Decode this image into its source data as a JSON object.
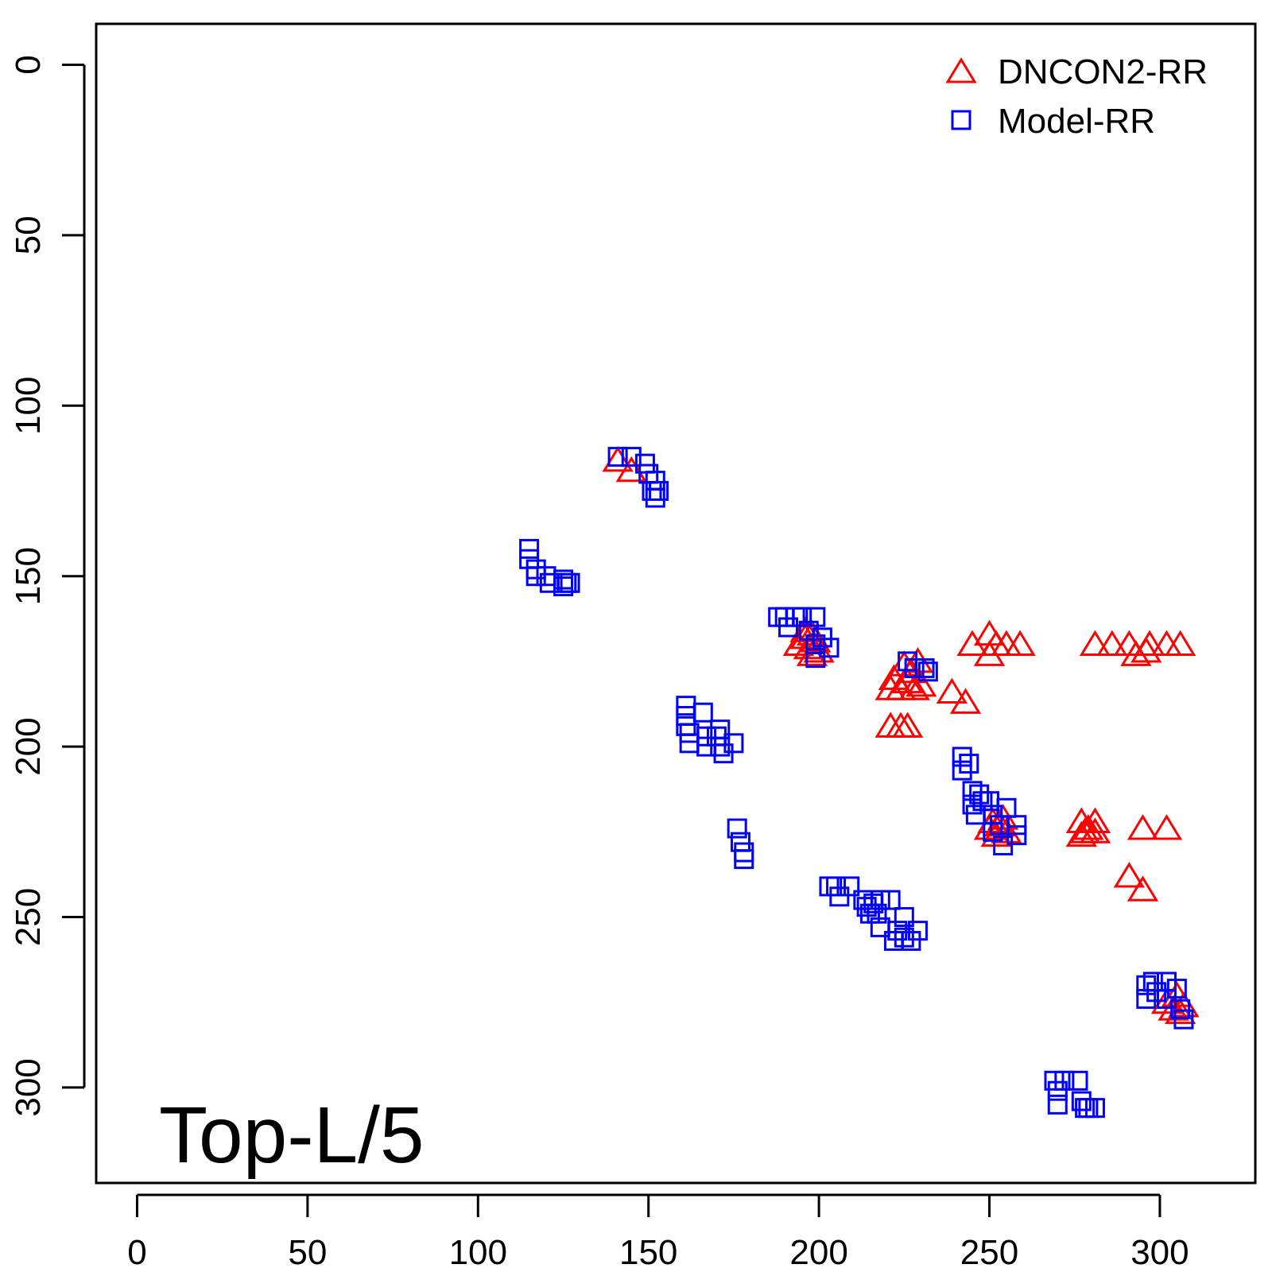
{
  "chart_data": {
    "type": "scatter",
    "annotation": "Top-L/5",
    "xlim": [
      -12,
      328
    ],
    "ylim": [
      328,
      -12
    ],
    "x_ticks": [
      0,
      50,
      100,
      150,
      200,
      250,
      300
    ],
    "y_ticks": [
      0,
      50,
      100,
      150,
      200,
      250,
      300
    ],
    "y_reversed": true,
    "legend_position": "top-right",
    "series": [
      {
        "name": "DNCON2-RR",
        "marker": "triangle",
        "color": "#ff0000",
        "points": [
          [
            141,
            116
          ],
          [
            145,
            119
          ],
          [
            194,
            170
          ],
          [
            196,
            168
          ],
          [
            197,
            171
          ],
          [
            198,
            167
          ],
          [
            199,
            169
          ],
          [
            200,
            172
          ],
          [
            198,
            173
          ],
          [
            196,
            166
          ],
          [
            221,
            183
          ],
          [
            222,
            180
          ],
          [
            224,
            183
          ],
          [
            225,
            176
          ],
          [
            226,
            181
          ],
          [
            228,
            183
          ],
          [
            230,
            182
          ],
          [
            227,
            178
          ],
          [
            229,
            175
          ],
          [
            221,
            194
          ],
          [
            224,
            194
          ],
          [
            226,
            194
          ],
          [
            239,
            184
          ],
          [
            243,
            187
          ],
          [
            245,
            170
          ],
          [
            250,
            167
          ],
          [
            252,
            170
          ],
          [
            250,
            173
          ],
          [
            255,
            170
          ],
          [
            259,
            170
          ],
          [
            281,
            170
          ],
          [
            286,
            170
          ],
          [
            291,
            170
          ],
          [
            293,
            173
          ],
          [
            296,
            172
          ],
          [
            297,
            170
          ],
          [
            302,
            170
          ],
          [
            306,
            170
          ],
          [
            250,
            224
          ],
          [
            251,
            222
          ],
          [
            252,
            226
          ],
          [
            253,
            223
          ],
          [
            254,
            221
          ],
          [
            255,
            225
          ],
          [
            277,
            226
          ],
          [
            277,
            222
          ],
          [
            278,
            225
          ],
          [
            279,
            224
          ],
          [
            281,
            222
          ],
          [
            281,
            225
          ],
          [
            295,
            224
          ],
          [
            302,
            224
          ],
          [
            291,
            238
          ],
          [
            295,
            242
          ],
          [
            302,
            275
          ],
          [
            304,
            277
          ],
          [
            305,
            273
          ],
          [
            306,
            278
          ],
          [
            307,
            276
          ]
        ]
      },
      {
        "name": "Model-RR",
        "marker": "square",
        "color": "#0000ff",
        "points": [
          [
            141,
            115
          ],
          [
            145,
            115
          ],
          [
            149,
            117
          ],
          [
            150,
            120
          ],
          [
            152,
            122
          ],
          [
            151,
            125
          ],
          [
            153,
            125
          ],
          [
            152,
            127
          ],
          [
            115,
            142
          ],
          [
            115,
            145
          ],
          [
            117,
            148
          ],
          [
            117,
            150
          ],
          [
            120,
            150
          ],
          [
            121,
            152
          ],
          [
            125,
            151
          ],
          [
            125,
            153
          ],
          [
            126,
            152
          ],
          [
            127,
            152
          ],
          [
            188,
            162
          ],
          [
            190,
            162
          ],
          [
            191,
            165
          ],
          [
            193,
            162
          ],
          [
            195,
            162
          ],
          [
            199,
            162
          ],
          [
            197,
            166
          ],
          [
            199,
            170
          ],
          [
            201,
            168
          ],
          [
            203,
            171
          ],
          [
            199,
            174
          ],
          [
            161,
            188
          ],
          [
            161,
            191
          ],
          [
            161,
            194
          ],
          [
            162,
            196
          ],
          [
            162,
            199
          ],
          [
            166,
            190
          ],
          [
            167,
            197
          ],
          [
            167,
            200
          ],
          [
            170,
            197
          ],
          [
            171,
            195
          ],
          [
            171,
            200
          ],
          [
            172,
            202
          ],
          [
            175,
            199
          ],
          [
            176,
            224
          ],
          [
            177,
            228
          ],
          [
            178,
            231
          ],
          [
            178,
            233
          ],
          [
            203,
            241
          ],
          [
            205,
            241
          ],
          [
            206,
            244
          ],
          [
            209,
            241
          ],
          [
            213,
            245
          ],
          [
            214,
            247
          ],
          [
            215,
            249
          ],
          [
            216,
            246
          ],
          [
            217,
            249
          ],
          [
            218,
            253
          ],
          [
            218,
            245
          ],
          [
            221,
            245
          ],
          [
            222,
            257
          ],
          [
            223,
            254
          ],
          [
            225,
            250
          ],
          [
            225,
            256
          ],
          [
            227,
            257
          ],
          [
            229,
            254
          ],
          [
            226,
            175
          ],
          [
            228,
            177
          ],
          [
            231,
            177
          ],
          [
            232,
            178
          ],
          [
            242,
            203
          ],
          [
            242,
            207
          ],
          [
            244,
            205
          ],
          [
            245,
            213
          ],
          [
            245,
            217
          ],
          [
            246,
            220
          ],
          [
            247,
            214
          ],
          [
            248,
            216
          ],
          [
            250,
            216
          ],
          [
            251,
            220
          ],
          [
            251,
            225
          ],
          [
            253,
            223
          ],
          [
            254,
            229
          ],
          [
            255,
            218
          ],
          [
            258,
            226
          ],
          [
            258,
            223
          ],
          [
            269,
            298
          ],
          [
            270,
            301
          ],
          [
            270,
            305
          ],
          [
            272,
            298
          ],
          [
            276,
            298
          ],
          [
            277,
            304
          ],
          [
            278,
            306
          ],
          [
            279,
            306
          ],
          [
            281,
            306
          ],
          [
            296,
            270
          ],
          [
            296,
            274
          ],
          [
            298,
            269
          ],
          [
            299,
            272
          ],
          [
            302,
            269
          ],
          [
            302,
            274
          ],
          [
            305,
            271
          ],
          [
            306,
            277
          ],
          [
            307,
            280
          ]
        ]
      }
    ]
  }
}
